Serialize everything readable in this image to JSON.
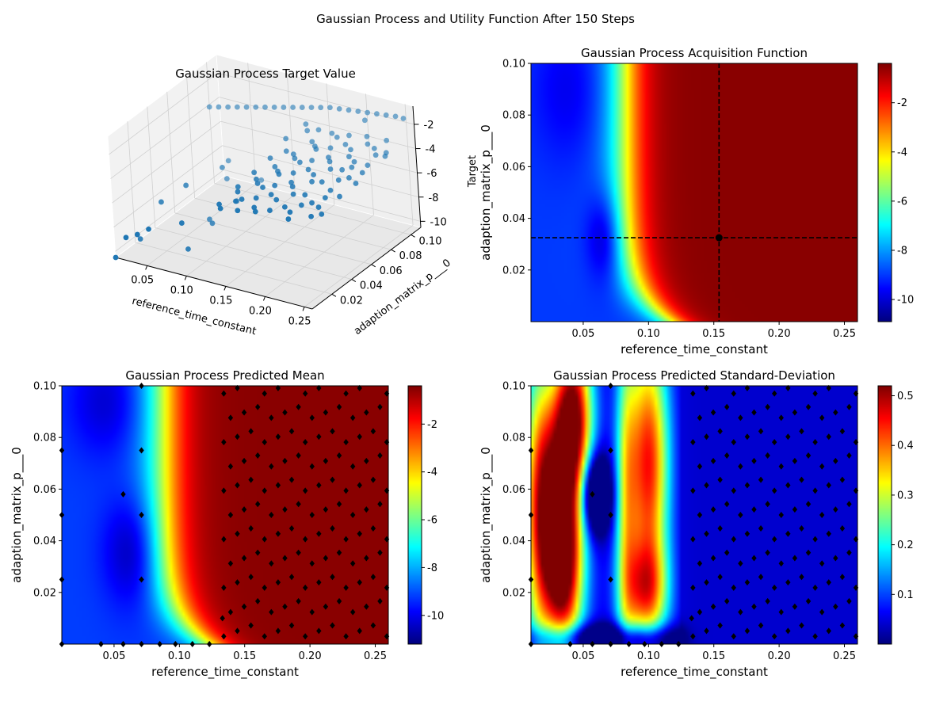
{
  "suptitle": "Gaussian Process and Utility Function After 150 Steps",
  "chart_data": [
    {
      "id": "target",
      "type": "scatter",
      "projection": "3d",
      "title": "Gaussian Process Target Value",
      "xlabel": "reference_time_constant",
      "ylabel": "adaption_matrix_p___0",
      "zlabel": "Target",
      "xlim": [
        0.01,
        0.26
      ],
      "ylim": [
        0.0,
        0.11
      ],
      "zlim": [
        -10.5,
        -0.5
      ],
      "xticks": [
        "0.05",
        "0.10",
        "0.15",
        "0.20",
        "0.25"
      ],
      "yticks": [
        "0.02",
        "0.04",
        "0.06",
        "0.08",
        "0.10"
      ],
      "zticks": [
        "-2",
        "-4",
        "-6",
        "-8",
        "-10"
      ],
      "marker_color": "#1f77b4",
      "points": [
        [
          0.01,
          0.0,
          -10.8
        ],
        [
          0.025,
          0.0,
          -8.6
        ],
        [
          0.04,
          0.0,
          -8.1
        ],
        [
          0.055,
          0.0,
          -7.4
        ],
        [
          0.01,
          0.025,
          -10.6
        ],
        [
          0.02,
          0.04,
          -8.2
        ],
        [
          0.04,
          0.05,
          -7.1
        ],
        [
          0.055,
          0.075,
          -6.9
        ],
        [
          0.071,
          0.025,
          -10.3
        ],
        [
          0.071,
          0.05,
          -9.7
        ],
        [
          0.071,
          0.075,
          -9.4
        ],
        [
          0.071,
          0.1,
          -9.2
        ],
        [
          0.057,
          0.058,
          -10.1
        ],
        [
          0.04,
          0.09,
          -9.0
        ],
        [
          0.03,
          0.1,
          -8.3
        ],
        [
          0.085,
          0.01,
          -7.0
        ],
        [
          0.01,
          0.1,
          -4.2
        ],
        [
          0.022,
          0.1,
          -4.0
        ],
        [
          0.034,
          0.1,
          -3.8
        ],
        [
          0.046,
          0.1,
          -3.6
        ],
        [
          0.058,
          0.1,
          -3.4
        ],
        [
          0.07,
          0.1,
          -3.2
        ],
        [
          0.082,
          0.1,
          -3.0
        ],
        [
          0.094,
          0.1,
          -2.8
        ],
        [
          0.106,
          0.1,
          -2.6
        ],
        [
          0.118,
          0.1,
          -2.4
        ],
        [
          0.13,
          0.1,
          -2.2
        ],
        [
          0.142,
          0.1,
          -2.0
        ],
        [
          0.154,
          0.1,
          -1.8
        ],
        [
          0.166,
          0.1,
          -1.6
        ],
        [
          0.178,
          0.1,
          -1.5
        ],
        [
          0.19,
          0.1,
          -1.4
        ],
        [
          0.202,
          0.1,
          -1.3
        ],
        [
          0.214,
          0.1,
          -1.2
        ],
        [
          0.226,
          0.1,
          -1.1
        ],
        [
          0.238,
          0.1,
          -1.0
        ],
        [
          0.25,
          0.1,
          -0.9
        ],
        [
          0.26,
          0.1,
          -0.9
        ],
        [
          0.135,
          0.01,
          -4.6
        ],
        [
          0.14,
          0.025,
          -4.4
        ],
        [
          0.145,
          0.04,
          -4.2
        ],
        [
          0.15,
          0.055,
          -4.0
        ],
        [
          0.155,
          0.07,
          -3.8
        ],
        [
          0.16,
          0.085,
          -3.6
        ],
        [
          0.165,
          0.005,
          -4.3
        ],
        [
          0.17,
          0.02,
          -4.1
        ],
        [
          0.175,
          0.035,
          -3.9
        ],
        [
          0.18,
          0.05,
          -3.7
        ],
        [
          0.185,
          0.065,
          -3.5
        ],
        [
          0.19,
          0.08,
          -3.3
        ],
        [
          0.195,
          0.095,
          -3.1
        ],
        [
          0.2,
          0.01,
          -4.0
        ],
        [
          0.205,
          0.03,
          -3.8
        ],
        [
          0.21,
          0.045,
          -3.6
        ],
        [
          0.215,
          0.06,
          -3.4
        ],
        [
          0.22,
          0.075,
          -3.2
        ],
        [
          0.225,
          0.09,
          -3.0
        ],
        [
          0.23,
          0.005,
          -3.9
        ],
        [
          0.235,
          0.025,
          -3.7
        ],
        [
          0.24,
          0.04,
          -3.5
        ],
        [
          0.245,
          0.055,
          -3.3
        ],
        [
          0.25,
          0.07,
          -3.1
        ],
        [
          0.255,
          0.085,
          -2.9
        ],
        [
          0.26,
          0.015,
          -3.6
        ],
        [
          0.26,
          0.05,
          -3.2
        ],
        [
          0.138,
          0.06,
          -3.8
        ],
        [
          0.148,
          0.09,
          -3.2
        ],
        [
          0.158,
          0.015,
          -4.1
        ],
        [
          0.168,
          0.045,
          -3.7
        ],
        [
          0.178,
          0.075,
          -3.3
        ],
        [
          0.188,
          0.005,
          -4.0
        ],
        [
          0.198,
          0.035,
          -3.6
        ],
        [
          0.208,
          0.065,
          -3.2
        ],
        [
          0.218,
          0.095,
          -2.8
        ],
        [
          0.228,
          0.02,
          -3.7
        ],
        [
          0.238,
          0.05,
          -3.3
        ],
        [
          0.248,
          0.08,
          -2.9
        ],
        [
          0.258,
          0.035,
          -3.4
        ],
        [
          0.133,
          0.08,
          -3.5
        ],
        [
          0.143,
          0.005,
          -4.5
        ],
        [
          0.153,
          0.035,
          -4.1
        ],
        [
          0.163,
          0.065,
          -3.7
        ],
        [
          0.173,
          0.095,
          -3.3
        ],
        [
          0.183,
          0.025,
          -3.9
        ],
        [
          0.193,
          0.055,
          -3.5
        ],
        [
          0.203,
          0.085,
          -3.1
        ],
        [
          0.213,
          0.015,
          -3.8
        ],
        [
          0.223,
          0.045,
          -3.4
        ],
        [
          0.233,
          0.07,
          -3.1
        ],
        [
          0.243,
          0.095,
          -2.7
        ],
        [
          0.253,
          0.01,
          -3.6
        ],
        [
          0.136,
          0.045,
          -4.1
        ],
        [
          0.146,
          0.07,
          -3.7
        ],
        [
          0.156,
          0.095,
          -3.3
        ],
        [
          0.166,
          0.03,
          -3.9
        ],
        [
          0.176,
          0.06,
          -3.5
        ],
        [
          0.186,
          0.09,
          -3.1
        ],
        [
          0.196,
          0.02,
          -3.8
        ],
        [
          0.206,
          0.05,
          -3.4
        ],
        [
          0.216,
          0.08,
          -3.0
        ],
        [
          0.226,
          0.01,
          -3.7
        ],
        [
          0.236,
          0.065,
          -3.2
        ],
        [
          0.246,
          0.03,
          -3.4
        ],
        [
          0.256,
          0.06,
          -3.0
        ],
        [
          0.14,
          0.095,
          -3.1
        ],
        [
          0.15,
          0.015,
          -4.4
        ],
        [
          0.16,
          0.05,
          -3.9
        ],
        [
          0.17,
          0.08,
          -3.5
        ],
        [
          0.18,
          0.01,
          -4.1
        ],
        [
          0.19,
          0.04,
          -3.7
        ],
        [
          0.2,
          0.07,
          -3.3
        ],
        [
          0.21,
          0.1,
          -1.9
        ],
        [
          0.22,
          0.03,
          -3.6
        ],
        [
          0.23,
          0.06,
          -3.2
        ],
        [
          0.24,
          0.085,
          -2.8
        ],
        [
          0.25,
          0.02,
          -3.5
        ],
        [
          0.26,
          0.08,
          -2.8
        ],
        [
          0.134,
          0.03,
          -4.4
        ]
      ]
    },
    {
      "id": "acquisition",
      "type": "heatmap",
      "title": "Gaussian Process Acquisition Function",
      "xlabel": "reference_time_constant",
      "ylabel": "adaption_matrix_p___0",
      "xlim": [
        0.01,
        0.26
      ],
      "ylim": [
        0.0,
        0.1
      ],
      "xticks": [
        "0.05",
        "0.10",
        "0.15",
        "0.20",
        "0.25"
      ],
      "yticks": [
        "0.02",
        "0.04",
        "0.06",
        "0.08",
        "0.10"
      ],
      "colormap": "jet",
      "color_range": [
        -10.9,
        -0.4
      ],
      "colorbar_ticks": [
        "-2",
        "-4",
        "-6",
        "-8",
        "-10"
      ],
      "colorbar_tick_values": [
        -2,
        -4,
        -6,
        -8,
        -10
      ],
      "max_point": [
        0.154,
        0.0325
      ]
    },
    {
      "id": "mean",
      "type": "heatmap",
      "title": "Gaussian Process Predicted Mean",
      "xlabel": "reference_time_constant",
      "ylabel": "adaption_matrix_p___0",
      "xlim": [
        0.01,
        0.26
      ],
      "ylim": [
        0.0,
        0.1
      ],
      "xticks": [
        "0.05",
        "0.10",
        "0.15",
        "0.20",
        "0.25"
      ],
      "yticks": [
        "0.02",
        "0.04",
        "0.06",
        "0.08",
        "0.10"
      ],
      "colormap": "jet",
      "color_range": [
        -11.2,
        -0.4
      ],
      "colorbar_ticks": [
        "-2",
        "-4",
        "-6",
        "-8",
        "-10"
      ],
      "colorbar_tick_values": [
        -2,
        -4,
        -6,
        -8,
        -10
      ],
      "marker_color": "#000000"
    },
    {
      "id": "std",
      "type": "heatmap",
      "title": "Gaussian Process Predicted Standard-Deviation",
      "xlabel": "reference_time_constant",
      "ylabel": "adaption_matrix_p___0",
      "xlim": [
        0.01,
        0.26
      ],
      "ylim": [
        0.0,
        0.1
      ],
      "xticks": [
        "0.05",
        "0.10",
        "0.15",
        "0.20",
        "0.25"
      ],
      "yticks": [
        "0.02",
        "0.04",
        "0.06",
        "0.08",
        "0.10"
      ],
      "colormap": "jet",
      "color_range": [
        0.0,
        0.52
      ],
      "colorbar_ticks": [
        "0.1",
        "0.2",
        "0.3",
        "0.4",
        "0.5"
      ],
      "colorbar_tick_values": [
        0.1,
        0.2,
        0.3,
        0.4,
        0.5
      ],
      "marker_color": "#000000"
    }
  ]
}
